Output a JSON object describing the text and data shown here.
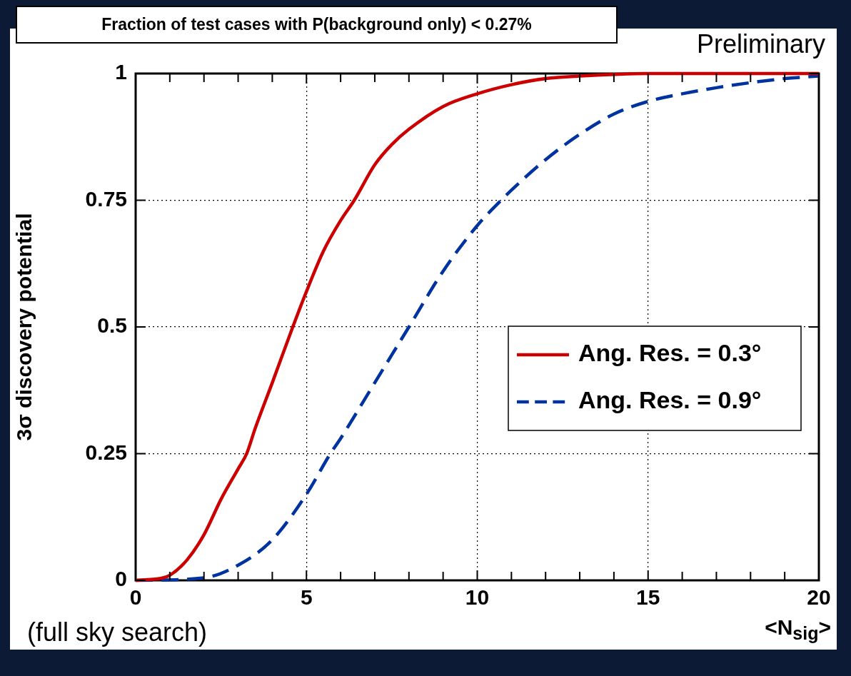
{
  "chart_data": {
    "type": "line",
    "title": "Fraction of test cases with P(background only) < 0.27%",
    "xlabel": "<N$_{sig}$>",
    "ylabel": "3σ discovery potential",
    "annotations": [
      "Preliminary",
      "(full sky search)"
    ],
    "xlim": [
      0,
      20
    ],
    "ylim": [
      0,
      1
    ],
    "xticks": [
      0,
      5,
      10,
      15,
      20
    ],
    "yticks": [
      0,
      0.25,
      0.5,
      0.75,
      1
    ],
    "grid": true,
    "legend": "right",
    "marker": "none",
    "series": [
      {
        "name": "Ang. Res. = 0.3°",
        "color": "#cc0000",
        "line_style": "solid",
        "x": [
          0,
          0.8,
          1,
          1.5,
          2,
          2.5,
          3,
          3.25,
          3.5,
          4,
          4.6,
          5,
          5.5,
          6,
          6.4,
          7,
          7.5,
          8,
          9,
          10,
          11,
          12,
          13,
          15,
          20
        ],
        "values": [
          0,
          0.005,
          0.01,
          0.04,
          0.09,
          0.16,
          0.22,
          0.25,
          0.3,
          0.39,
          0.5,
          0.57,
          0.65,
          0.71,
          0.75,
          0.82,
          0.86,
          0.89,
          0.935,
          0.96,
          0.978,
          0.99,
          0.995,
          1,
          1
        ]
      },
      {
        "name": "Ang. Res. = 0.9°",
        "color": "#0033a0",
        "line_style": "dashed",
        "x": [
          0,
          2,
          3,
          4,
          5,
          5.7,
          6,
          7,
          8,
          9,
          10,
          10.7,
          11,
          12,
          13,
          14,
          15,
          16,
          17,
          18,
          19,
          20
        ],
        "values": [
          0,
          0.005,
          0.03,
          0.08,
          0.17,
          0.25,
          0.28,
          0.39,
          0.5,
          0.61,
          0.7,
          0.75,
          0.77,
          0.83,
          0.88,
          0.92,
          0.945,
          0.96,
          0.972,
          0.982,
          0.99,
          0.995
        ]
      }
    ]
  }
}
